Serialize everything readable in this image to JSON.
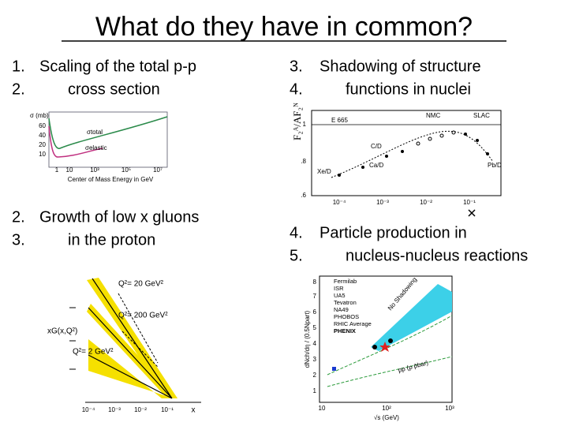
{
  "title": "What do they have in common?",
  "sections": [
    {
      "items": [
        {
          "number": "1.",
          "text": "Scaling of the total p-p"
        },
        {
          "number": "2.",
          "text": "cross section"
        }
      ]
    },
    {
      "items": [
        {
          "number": "3.",
          "text": "Shadowing of structure"
        },
        {
          "number": "4.",
          "text": "functions in nuclei"
        }
      ]
    },
    {
      "items": [
        {
          "number": "2.",
          "text": "Growth of low x gluons"
        },
        {
          "number": "3.",
          "text": "in the proton"
        }
      ]
    },
    {
      "items": [
        {
          "number": "4.",
          "text": "Particle production in"
        },
        {
          "number": "5.",
          "text": "nucleus-nucleus reactions"
        }
      ]
    }
  ],
  "figure_cross_section": {
    "y_label": "σ (mb)",
    "total": "σtotal",
    "elastic": "σelastic",
    "x_label": "Center of Mass Energy in GeV",
    "yticks": [
      "60",
      "40",
      "20",
      "10"
    ],
    "xticks": [
      "1",
      "10",
      "10³",
      "10⁵",
      "10⁷"
    ]
  },
  "figure_shadowing": {
    "y_label": "F₂ᴬ/AF₂ᴺ",
    "labels": [
      "E 665",
      "NMC",
      "SLAC",
      "C/D",
      "Ca/D",
      "Xe/D",
      "Pb/D"
    ],
    "xticks": [
      "10⁻⁴",
      "10⁻³",
      "10⁻²",
      "10⁻¹"
    ],
    "yticks": [
      "1",
      ".8",
      ".6"
    ]
  },
  "figure_gluons": {
    "curves": [
      "Q²= 20 GeV²",
      "Q²= 200 GeV²",
      "Q²= 2 GeV²"
    ],
    "y_label": "xG(x,Q²)",
    "xticks": [
      "10⁻⁴",
      "10⁻³",
      "10⁻²",
      "10⁻¹"
    ],
    "x_label": "x"
  },
  "figure_particles": {
    "legend": [
      "Fermilab",
      "ISR",
      "UA5",
      "Tevatron",
      "NA49",
      "PHOBOS",
      "RHIC Average",
      "PHENIX"
    ],
    "no_shadowing": "No Shadowing",
    "pp_label": "pp (p p̄bar)",
    "y_label": "dNch/dη / (0.5Npart)",
    "x_label": "√s (GeV)",
    "yticks": [
      "8",
      "7",
      "6",
      "5",
      "4",
      "3",
      "2",
      "1"
    ],
    "xticks": [
      "10",
      "10²",
      "10³"
    ]
  }
}
